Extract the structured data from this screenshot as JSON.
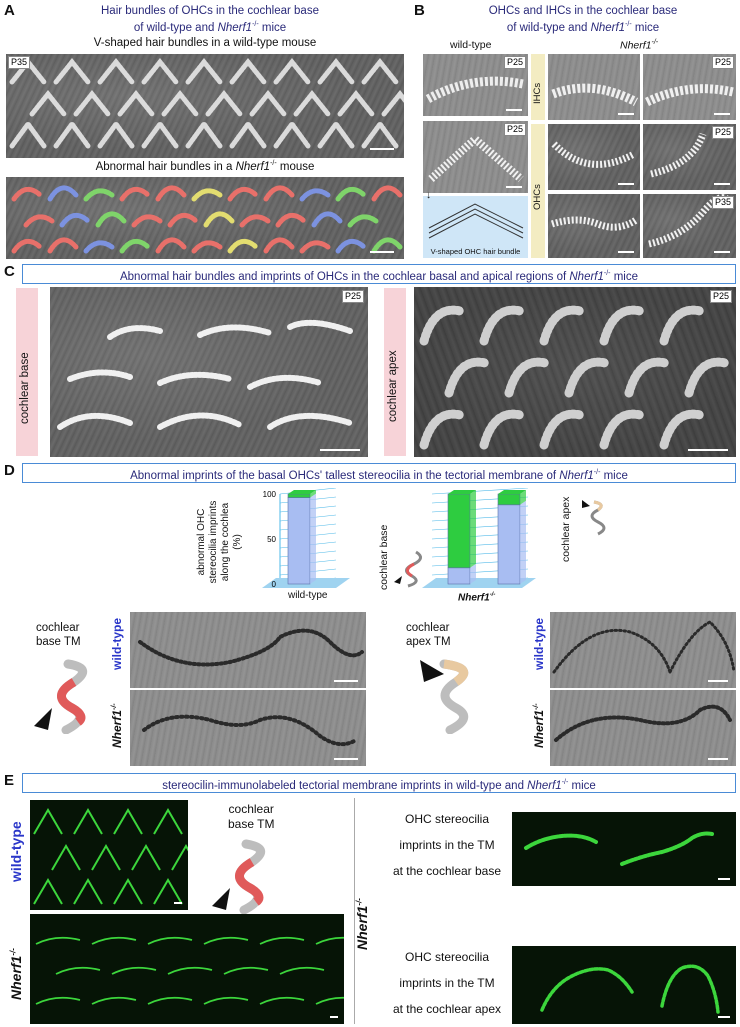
{
  "panelA": {
    "letter": "A",
    "title_line1": "Hair bundles of OHCs in the cochlear base",
    "title_line2_pre": "of wild-type and ",
    "title_line2_gene": "Nherf1",
    "title_line2_sup": "-/-",
    "title_line2_post": " mice",
    "wt_caption": "V-shaped hair bundles in a wild-type mouse",
    "wt_tag": "P35",
    "mut_caption_pre": "Abnormal hair bundles in a ",
    "mut_caption_gene": "Nherf1",
    "mut_caption_sup": "-/-",
    "mut_caption_post": " mouse"
  },
  "panelB": {
    "letter": "B",
    "title_line1": "OHCs and IHCs in the cochlear base",
    "title_line2_pre": "of wild-type and ",
    "title_line2_gene": "Nherf1",
    "title_line2_sup": "-/-",
    "title_line2_post": " mice",
    "col_wt": "wild-type",
    "col_mut_gene": "Nherf1",
    "col_mut_sup": "-/-",
    "row_ihc": "IHCs",
    "row_ohc": "OHCs",
    "tag_p25": "P25",
    "tag_p35": "P35",
    "schematic_caption": "V-shaped OHC hair bundle"
  },
  "panelC": {
    "letter": "C",
    "header_pre": "Abnormal hair bundles and imprints of OHCs in the cochlear basal and apical regions of ",
    "header_gene": "Nherf1",
    "header_sup": "-/-",
    "header_post": " mice",
    "label_base": "cochlear base",
    "label_apex": "cochlear apex",
    "tag": "P25"
  },
  "panelD": {
    "letter": "D",
    "header_pre": "Abnormal imprints of the basal OHCs' tallest stereocilia in the tectorial membrane of ",
    "header_gene": "Nherf1",
    "header_sup": "-/-",
    "header_post": " mice",
    "ylabel_lines": [
      "abnormal OHC",
      "stereocilia imprints",
      "along  the cochlea",
      "(%)"
    ],
    "label_base": "cochlear base",
    "label_apex": "cochlear apex",
    "base_tm_line1": "cochlear",
    "base_tm_line2": "base TM",
    "apex_tm_line1": "cochlear",
    "apex_tm_line2": "apex TM",
    "wt_label": "wild-type",
    "mut_gene": "Nherf1",
    "mut_sup": "-/-"
  },
  "panelE": {
    "letter": "E",
    "header_pre": "stereocilin-immunolabeled tectorial membrane imprints in wild-type and ",
    "header_gene": "Nherf1",
    "header_sup": "-/-",
    "header_post": " mice",
    "wt_label": "wild-type",
    "mut_gene": "Nherf1",
    "mut_sup": "-/-",
    "base_tm_line1": "cochlear",
    "base_tm_line2": "base TM",
    "base_text": [
      "OHC stereocilia",
      "imprints in the TM",
      "at the cochlear base"
    ],
    "apex_text": [
      "OHC stereocilia",
      "imprints in the TM",
      "at the cochlear apex"
    ]
  },
  "chart_data": {
    "type": "bar",
    "categories": [
      "wild-type",
      "Nherf1-/-",
      "Nherf1-/-"
    ],
    "ylabel": "abnormal OHC stereocilia imprints along the cochlea (%)",
    "ylim": [
      0,
      100
    ],
    "yticks": [
      "0",
      "50",
      "100"
    ],
    "x_labels": [
      "wild-type",
      "Nherf1-/-"
    ],
    "series": [
      {
        "color": "#2ecc40",
        "values": [
          4,
          82,
          12
        ]
      },
      {
        "color": "#a8bdf2",
        "values": [
          96,
          18,
          88
        ]
      }
    ],
    "colors": {
      "green": "#2ecc40",
      "blue": "#a8bdf2",
      "grid": "#4db8e8"
    }
  },
  "colors": {
    "title": "#2a2a7a",
    "box_border": "#4a8bd6",
    "pink_band": "#f7d3d8",
    "yellow_band": "#f3ecc2",
    "fluorescence": "#3cd63c",
    "bundle_red": "#e8706a",
    "bundle_green": "#7fd46a",
    "bundle_yellow": "#e3dd70",
    "bundle_blue": "#7c92e0"
  }
}
